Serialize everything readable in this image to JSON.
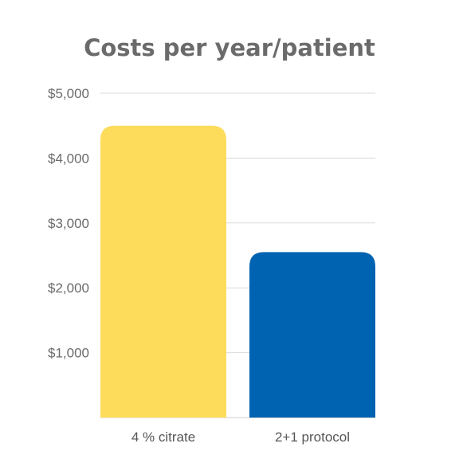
{
  "chart_data": {
    "type": "bar",
    "title": "Costs per year/patient",
    "categories": [
      "4 % citrate",
      "2+1 protocol"
    ],
    "values": [
      4500,
      2550
    ],
    "colors": [
      "#FDDC5C",
      "#0063B1"
    ],
    "ylim": [
      0,
      5000
    ],
    "yticks": [
      1000,
      2000,
      3000,
      4000,
      5000
    ],
    "ytick_labels": [
      "$1,000",
      "$2,000",
      "$3,000",
      "$4,000",
      "$5,000"
    ],
    "xlabel": "",
    "ylabel": "",
    "grid": true,
    "legend": "none"
  }
}
